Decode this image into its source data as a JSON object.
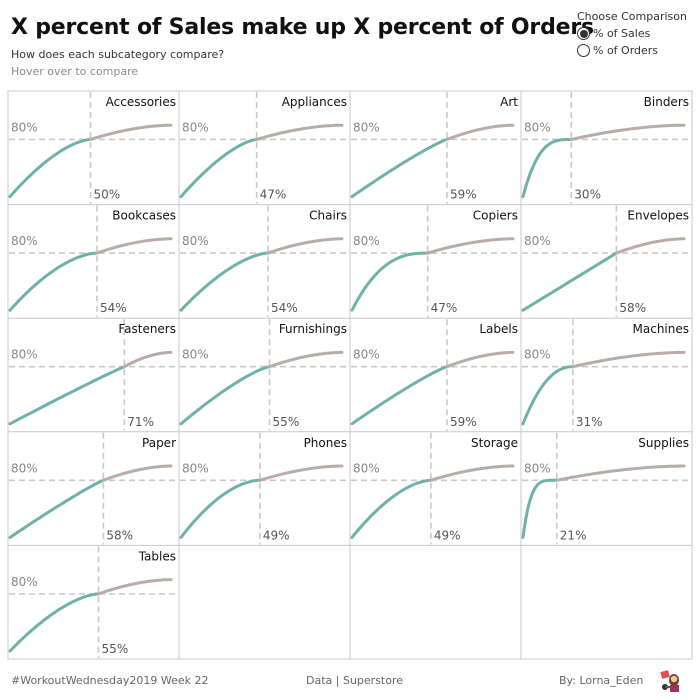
{
  "header": {
    "title": "X percent of Sales make up X percent of Orders",
    "subtitle": "How does each subcategory compare?",
    "hint": "Hover over to compare"
  },
  "parameter": {
    "title": "Choose Comparison",
    "options": [
      {
        "label": "% of Sales",
        "selected": true
      },
      {
        "label": "% of Orders",
        "selected": false
      }
    ]
  },
  "footer": {
    "left": "#WorkoutWednesday2019 Week 22",
    "center": "Data | Superstore",
    "right": "By: Lorna_Eden",
    "avatar_icon": "author-avatar-icon"
  },
  "colors": {
    "below_line": "#6fb1a8",
    "above_line": "#b9aca8",
    "reference": "#c8c8c8",
    "grid": "#c8c8c8"
  },
  "chart_data": {
    "type": "line",
    "title": "X percent of Sales make up X percent of Orders",
    "layout": "small-multiples 4 columns",
    "x_measure": "cumulative % of orders (0-100)",
    "y_measure": "cumulative % of sales (0-100)",
    "reference_line_label": "80%",
    "reference_y": 80,
    "ylim": [
      0,
      100
    ],
    "xlim": [
      0,
      100
    ],
    "panels": [
      {
        "name": "Accessories",
        "threshold_pct": 50,
        "start_y": 0,
        "shape": 1.6
      },
      {
        "name": "Appliances",
        "threshold_pct": 47,
        "start_y": 0,
        "shape": 1.5
      },
      {
        "name": "Art",
        "threshold_pct": 59,
        "start_y": 0,
        "shape": 1.15
      },
      {
        "name": "Binders",
        "threshold_pct": 30,
        "start_y": 0,
        "shape": 3.2
      },
      {
        "name": "Bookcases",
        "threshold_pct": 54,
        "start_y": 0,
        "shape": 1.7
      },
      {
        "name": "Chairs",
        "threshold_pct": 54,
        "start_y": 0,
        "shape": 1.6
      },
      {
        "name": "Copiers",
        "threshold_pct": 47,
        "start_y": 0,
        "shape": 2.6
      },
      {
        "name": "Envelopes",
        "threshold_pct": 58,
        "start_y": 0,
        "shape": 1.0
      },
      {
        "name": "Fasteners",
        "threshold_pct": 71,
        "start_y": 0,
        "shape": 1.05
      },
      {
        "name": "Furnishings",
        "threshold_pct": 55,
        "start_y": 0,
        "shape": 1.3
      },
      {
        "name": "Labels",
        "threshold_pct": 59,
        "start_y": 0,
        "shape": 1.15
      },
      {
        "name": "Machines",
        "threshold_pct": 31,
        "start_y": 0,
        "shape": 2.2
      },
      {
        "name": "Paper",
        "threshold_pct": 58,
        "start_y": 0,
        "shape": 1.1
      },
      {
        "name": "Phones",
        "threshold_pct": 49,
        "start_y": 0,
        "shape": 1.8
      },
      {
        "name": "Storage",
        "threshold_pct": 49,
        "start_y": 0,
        "shape": 1.7
      },
      {
        "name": "Supplies",
        "threshold_pct": 21,
        "start_y": 0,
        "shape": 4.5
      },
      {
        "name": "Tables",
        "threshold_pct": 55,
        "start_y": 0,
        "shape": 1.6
      }
    ]
  }
}
